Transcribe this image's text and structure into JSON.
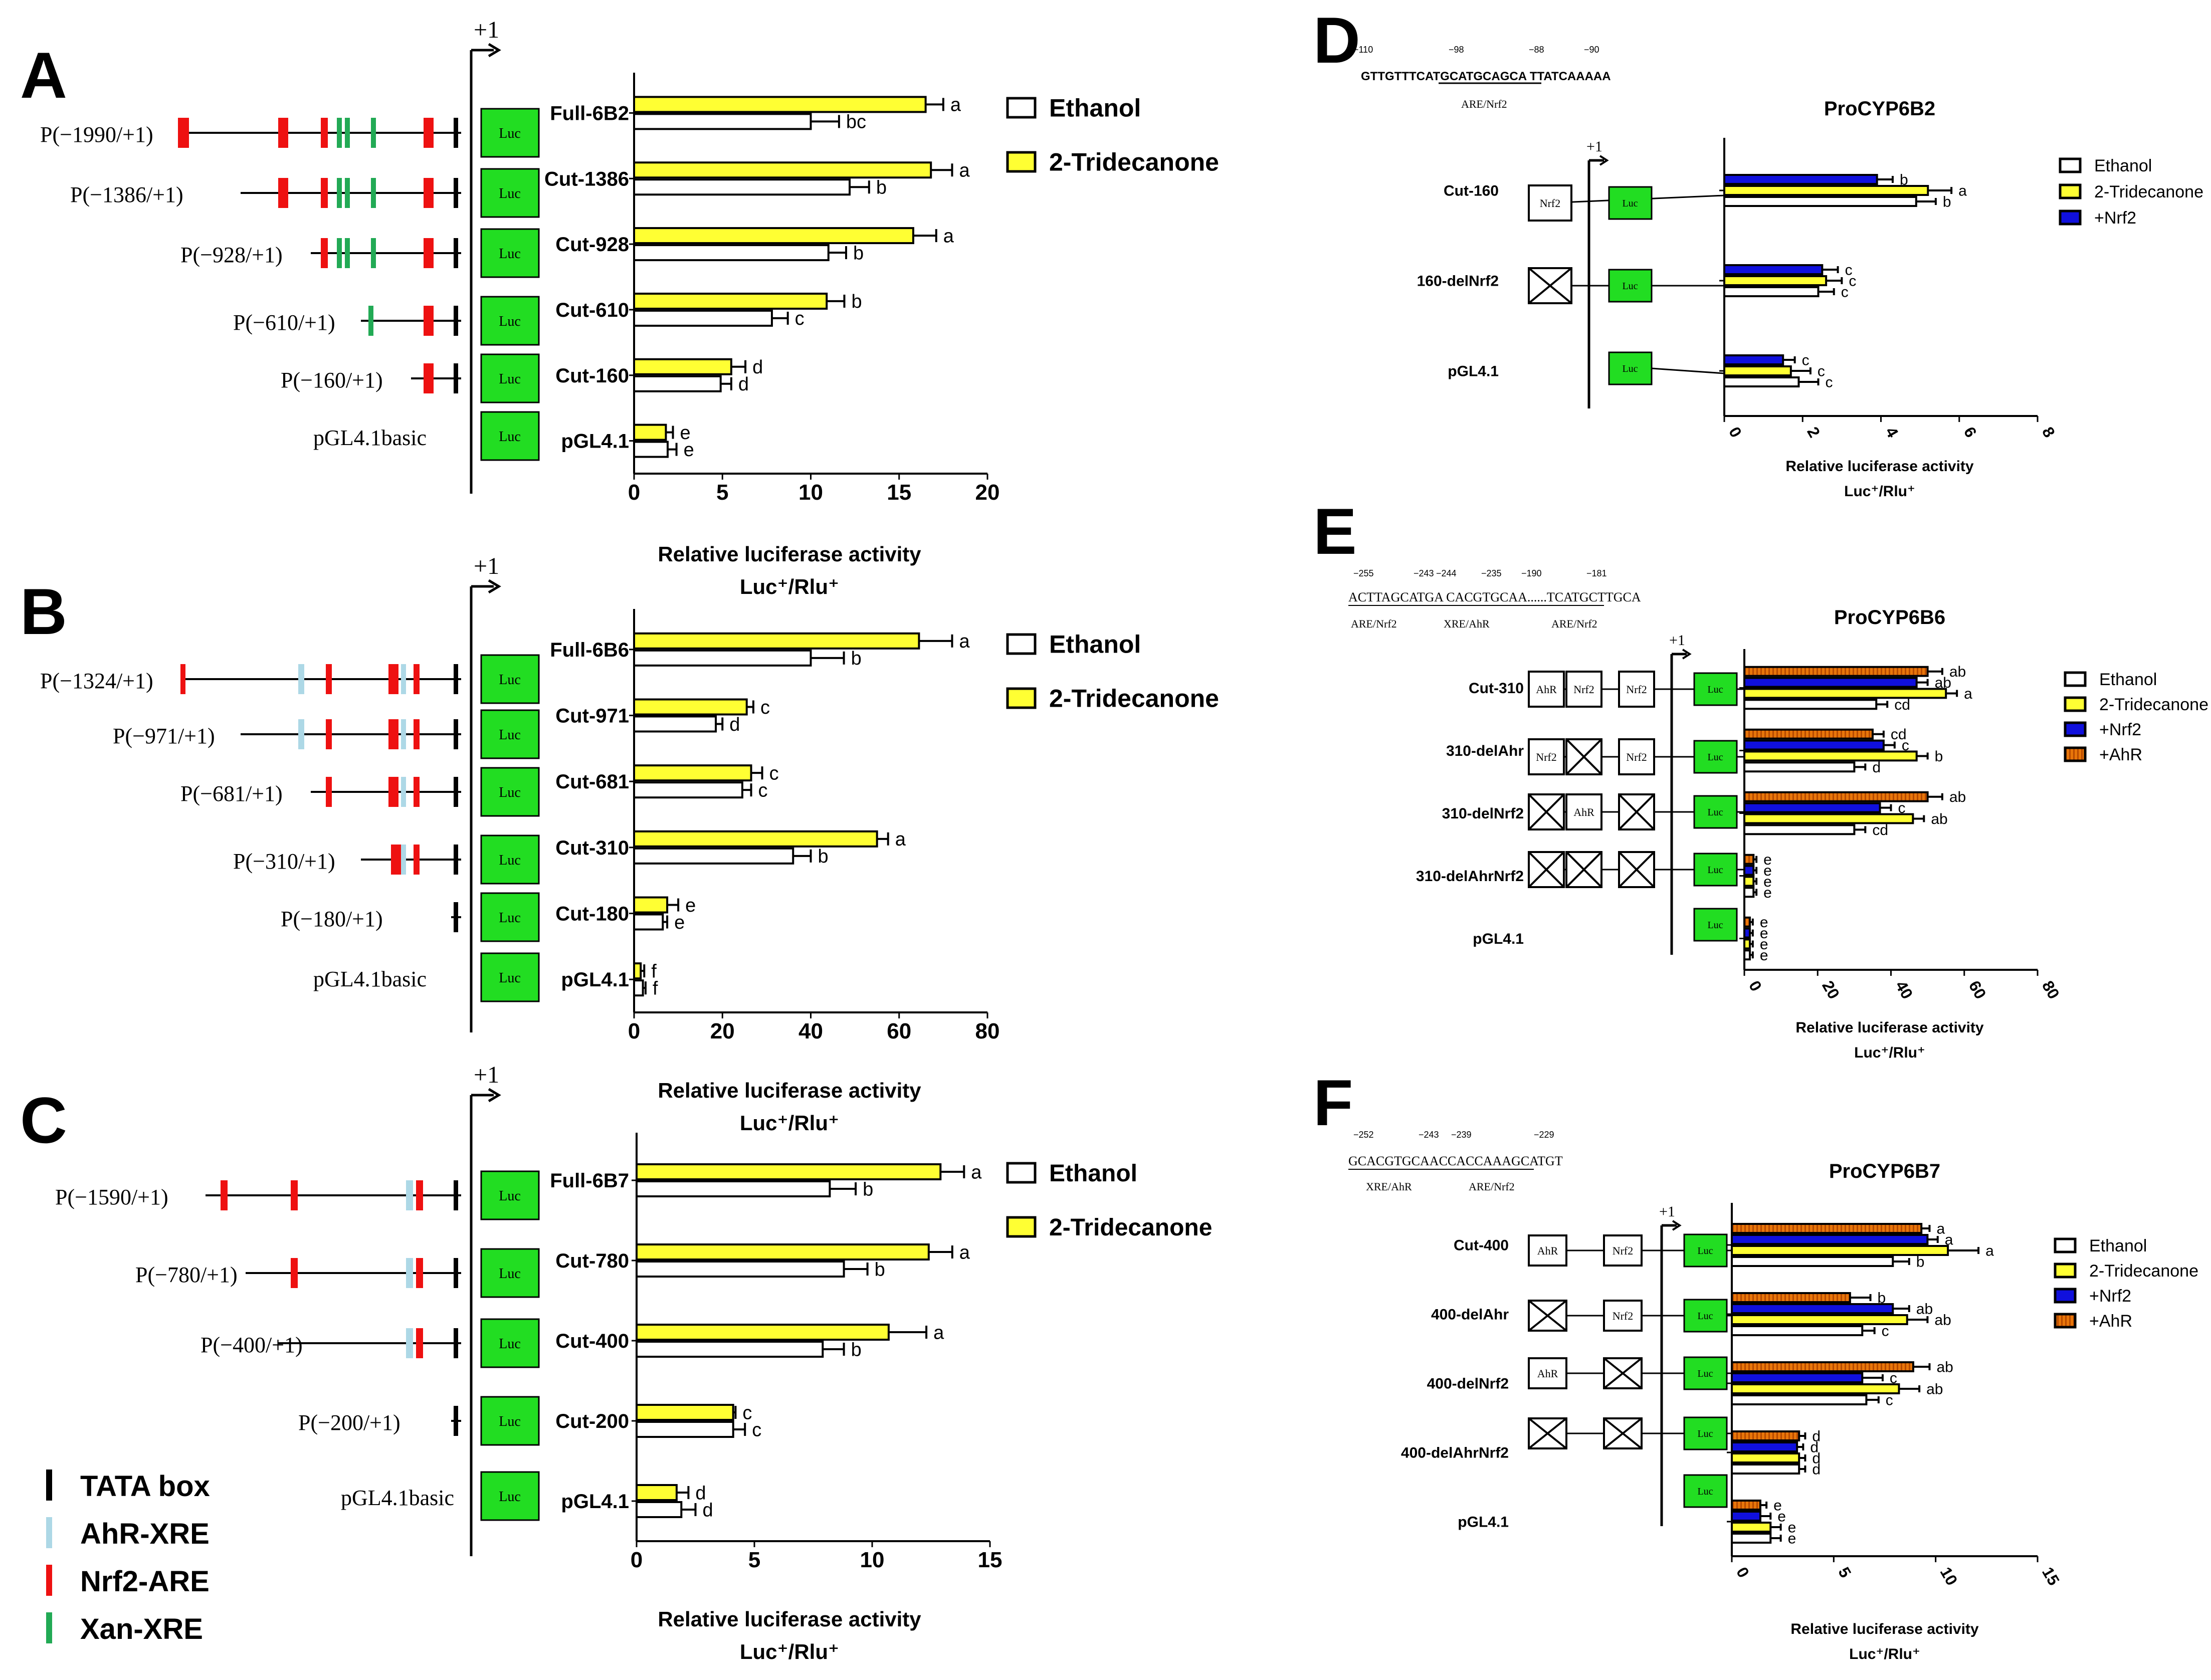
{
  "colors": {
    "ethanol": "#ffffff",
    "tridecanone": "#ffff33",
    "nrf2": "#1010dd",
    "ahr": "#e8760a",
    "luc": "#22dd22",
    "ahr_xre": "#add8e6",
    "nrf2_are": "#ee1111",
    "xan_xre": "#22aa55",
    "tata": "#000000"
  },
  "legend_elements": [
    {
      "label": "TATA box",
      "color_key": "tata"
    },
    {
      "label": "AhR-XRE",
      "color_key": "ahr_xre"
    },
    {
      "label": "Nrf2-ARE",
      "color_key": "nrf2_are"
    },
    {
      "label": "Xan-XRE",
      "color_key": "xan_xre"
    }
  ],
  "common": {
    "plus_one": "+1",
    "luc": "Luc",
    "xlabel_line1": "Relative luciferase activity",
    "xlabel_line2": "Luc⁺/Rlu⁺",
    "box_nrf2": "Nrf2",
    "box_ahr": "AhR"
  },
  "panels": {
    "A": {
      "letter": "A",
      "constructs": [
        "P(−1990/+1)",
        "P(−1386/+1)",
        "P(−928/+1)",
        "P(−610/+1)",
        "P(−160/+1)",
        "pGL4.1basic"
      ]
    },
    "B": {
      "letter": "B",
      "constructs": [
        "P(−1324/+1)",
        "P(−971/+1)",
        "P(−681/+1)",
        "P(−310/+1)",
        "P(−180/+1)",
        "pGL4.1basic"
      ]
    },
    "C": {
      "letter": "C",
      "constructs": [
        "P(−1590/+1)",
        "P(−780/+1)",
        "P(−400/+1)",
        "P(−200/+1)",
        "pGL4.1basic"
      ]
    },
    "D": {
      "letter": "D",
      "seq": "GTTGTTTCATGCATGCAGCA TTATCAAAAA",
      "seq_pos": [
        "−110",
        "−98",
        "−88",
        "−90"
      ],
      "seq_label": "ARE/Nrf2"
    },
    "E": {
      "letter": "E",
      "seq": "ACTTAGCATGA CACGTGCAA......TCATGCTTGCA",
      "seq_pos": [
        "−255",
        "−243",
        "−244",
        "−235",
        "−190",
        "−181"
      ],
      "seq_labels": [
        "ARE/Nrf2",
        "XRE/AhR",
        "ARE/Nrf2"
      ]
    },
    "F": {
      "letter": "F",
      "seq": "GCACGTGCAACCACCAAAGCATGT",
      "seq_pos": [
        "−252",
        "−243",
        "−239",
        "−229"
      ],
      "seq_labels": [
        "XRE/AhR",
        "ARE/Nrf2"
      ]
    }
  },
  "chart_data": [
    {
      "id": "A",
      "type": "bar",
      "orientation": "horizontal",
      "categories": [
        "Full-6B2",
        "Cut-1386",
        "Cut-928",
        "Cut-610",
        "Cut-160",
        "pGL4.1"
      ],
      "series": [
        {
          "name": "2-Tridecanone",
          "values": [
            16.5,
            16.8,
            15.8,
            10.9,
            5.5,
            1.8
          ],
          "errors": [
            1.0,
            1.2,
            1.3,
            1.0,
            0.8,
            0.4
          ],
          "letters": [
            "a",
            "a",
            "a",
            "b",
            "d",
            "e"
          ]
        },
        {
          "name": "Ethanol",
          "values": [
            10.0,
            12.2,
            11.0,
            7.8,
            4.9,
            1.9
          ],
          "errors": [
            1.6,
            1.1,
            1.0,
            0.9,
            0.6,
            0.5
          ],
          "letters": [
            "bc",
            "b",
            "b",
            "c",
            "d",
            "e"
          ]
        }
      ],
      "legend": [
        "Ethanol",
        "2-Tridecanone"
      ],
      "xlim": [
        0,
        20
      ],
      "ticks": [
        0,
        5,
        10,
        15,
        20
      ],
      "xlabel": "Relative luciferase activity Luc⁺/Rlu⁺"
    },
    {
      "id": "B",
      "type": "bar",
      "orientation": "horizontal",
      "categories": [
        "Full-6B6",
        "Cut-971",
        "Cut-681",
        "Cut-310",
        "Cut-180",
        "pGL4.1"
      ],
      "series": [
        {
          "name": "2-Tridecanone",
          "values": [
            64.5,
            25.5,
            26.5,
            55.0,
            7.5,
            1.5
          ],
          "errors": [
            7.5,
            1.5,
            2.5,
            2.5,
            2.5,
            0.8
          ],
          "letters": [
            "a",
            "c",
            "c",
            "a",
            "e",
            "f"
          ]
        },
        {
          "name": "Ethanol",
          "values": [
            40.0,
            18.5,
            24.5,
            36.0,
            6.5,
            2.0
          ],
          "errors": [
            7.5,
            1.5,
            2.0,
            4.0,
            1.0,
            0.6
          ],
          "letters": [
            "b",
            "d",
            "c",
            "b",
            "e",
            "f"
          ]
        }
      ],
      "legend": [
        "Ethanol",
        "2-Tridecanone"
      ],
      "xlim": [
        0,
        80
      ],
      "ticks": [
        0,
        20,
        40,
        60,
        80
      ],
      "xlabel": "Relative luciferase activity Luc⁺/Rlu⁺"
    },
    {
      "id": "C",
      "type": "bar",
      "orientation": "horizontal",
      "categories": [
        "Full-6B7",
        "Cut-780",
        "Cut-400",
        "Cut-200",
        "pGL4.1"
      ],
      "series": [
        {
          "name": "2-Tridecanone",
          "values": [
            12.9,
            12.4,
            10.7,
            4.1,
            1.7
          ],
          "errors": [
            1.0,
            1.0,
            1.6,
            0.1,
            0.5
          ],
          "letters": [
            "a",
            "a",
            "a",
            "c",
            "d"
          ]
        },
        {
          "name": "Ethanol",
          "values": [
            8.2,
            8.8,
            7.9,
            4.1,
            1.9
          ],
          "errors": [
            1.1,
            1.0,
            0.9,
            0.5,
            0.6
          ],
          "letters": [
            "b",
            "b",
            "b",
            "c",
            "d"
          ]
        }
      ],
      "legend": [
        "Ethanol",
        "2-Tridecanone"
      ],
      "xlim": [
        0,
        15
      ],
      "ticks": [
        0,
        5,
        10,
        15
      ],
      "xlabel": "Relative luciferase activity Luc⁺/Rlu⁺"
    },
    {
      "id": "D",
      "type": "bar",
      "orientation": "horizontal",
      "title": "ProCYP6B2",
      "categories": [
        "Cut-160",
        "160-delNrf2",
        "pGL4.1"
      ],
      "series": [
        {
          "name": "+Nrf2",
          "values": [
            3.9,
            2.5,
            1.5
          ],
          "errors": [
            0.4,
            0.4,
            0.3
          ],
          "letters": [
            "b",
            "c",
            "c"
          ]
        },
        {
          "name": "2-Tridecanone",
          "values": [
            5.2,
            2.6,
            1.7
          ],
          "errors": [
            0.6,
            0.4,
            0.5
          ],
          "letters": [
            "a",
            "c",
            "c"
          ]
        },
        {
          "name": "Ethanol",
          "values": [
            4.9,
            2.4,
            1.9
          ],
          "errors": [
            0.5,
            0.4,
            0.5
          ],
          "letters": [
            "b",
            "c",
            "c"
          ]
        }
      ],
      "legend": [
        "Ethanol",
        "2-Tridecanone",
        "+Nrf2"
      ],
      "xlim": [
        0,
        8
      ],
      "ticks": [
        0,
        2,
        4,
        6,
        8
      ],
      "xlabel": "Relative luciferase activity Luc⁺/Rlu⁺"
    },
    {
      "id": "E",
      "type": "bar",
      "orientation": "horizontal",
      "title": "ProCYP6B6",
      "categories": [
        "Cut-310",
        "310-delAhr",
        "310-delNrf2",
        "310-delAhrNrf2",
        "pGL4.1"
      ],
      "series": [
        {
          "name": "+AhR",
          "values": [
            50,
            35,
            50,
            2.5,
            1.5
          ],
          "errors": [
            4,
            3,
            4,
            0.8,
            0.8
          ],
          "letters": [
            "ab",
            "cd",
            "ab",
            "e",
            "e"
          ]
        },
        {
          "name": "+Nrf2",
          "values": [
            47,
            38,
            37,
            2.5,
            1.5
          ],
          "errors": [
            3,
            3,
            3,
            0.8,
            0.8
          ],
          "letters": [
            "ab",
            "c",
            "c",
            "e",
            "e"
          ]
        },
        {
          "name": "2-Tridecanone",
          "values": [
            55,
            47,
            46,
            2.5,
            1.5
          ],
          "errors": [
            3,
            3,
            3,
            0.8,
            0.8
          ],
          "letters": [
            "a",
            "b",
            "ab",
            "e",
            "e"
          ]
        },
        {
          "name": "Ethanol",
          "values": [
            36,
            30,
            30,
            2.5,
            1.5
          ],
          "errors": [
            3,
            3,
            3,
            0.8,
            0.8
          ],
          "letters": [
            "cd",
            "d",
            "cd",
            "e",
            "e"
          ]
        }
      ],
      "legend": [
        "Ethanol",
        "2-Tridecanone",
        "+Nrf2",
        "+AhR"
      ],
      "xlim": [
        0,
        80
      ],
      "ticks": [
        0,
        20,
        40,
        60,
        80
      ],
      "xlabel": "Relative luciferase activity Luc⁺/Rlu⁺"
    },
    {
      "id": "F",
      "type": "bar",
      "orientation": "horizontal",
      "title": "ProCYP6B7",
      "categories": [
        "Cut-400",
        "400-delAhr",
        "400-delNrf2",
        "400-delAhrNrf2",
        "pGL4.1"
      ],
      "series": [
        {
          "name": "+AhR",
          "values": [
            9.3,
            5.8,
            8.9,
            3.3,
            1.4
          ],
          "errors": [
            0.4,
            1.0,
            0.8,
            0.3,
            0.3
          ],
          "letters": [
            "a",
            "b",
            "ab",
            "d",
            "e"
          ]
        },
        {
          "name": "+Nrf2",
          "values": [
            9.6,
            7.9,
            6.4,
            3.2,
            1.4
          ],
          "errors": [
            0.5,
            0.8,
            1.0,
            0.3,
            0.5
          ],
          "letters": [
            "a",
            "ab",
            "c",
            "d",
            "e"
          ]
        },
        {
          "name": "2-Tridecanone",
          "values": [
            10.6,
            8.6,
            8.2,
            3.3,
            1.9
          ],
          "errors": [
            1.5,
            1.0,
            1.0,
            0.3,
            0.5
          ],
          "letters": [
            "a",
            "ab",
            "ab",
            "d",
            "e"
          ]
        },
        {
          "name": "Ethanol",
          "values": [
            7.9,
            6.4,
            6.6,
            3.3,
            1.9
          ],
          "errors": [
            0.8,
            0.6,
            0.6,
            0.3,
            0.5
          ],
          "letters": [
            "b",
            "c",
            "c",
            "d",
            "e"
          ]
        }
      ],
      "legend": [
        "Ethanol",
        "2-Tridecanone",
        "+Nrf2",
        "+AhR"
      ],
      "xlim": [
        0,
        15
      ],
      "ticks": [
        0,
        5,
        10,
        15
      ],
      "xlabel": "Relative luciferase activity Luc⁺/Rlu⁺"
    }
  ]
}
